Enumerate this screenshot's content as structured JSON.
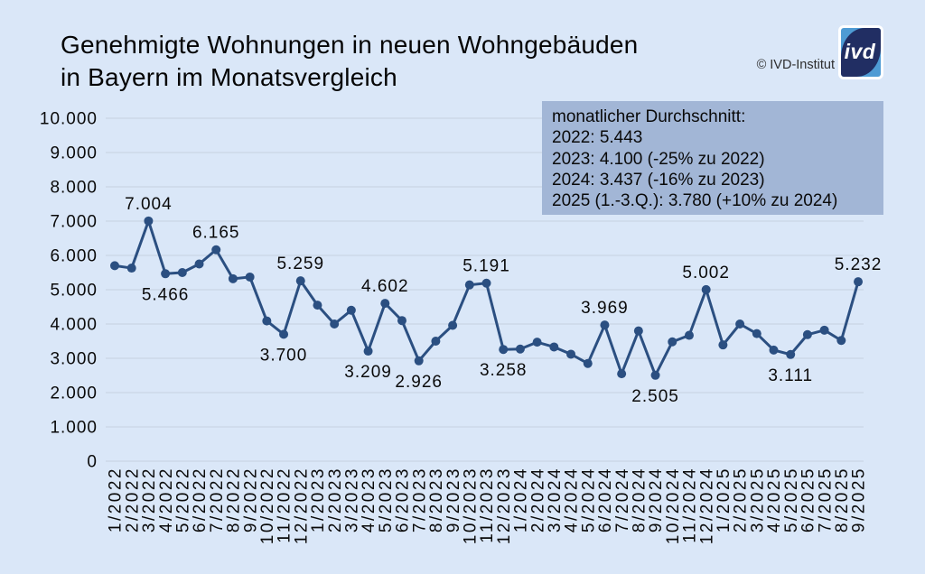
{
  "page": {
    "background": "#dae7f8"
  },
  "header": {
    "title_line1": "Genehmigte Wohnungen in neuen Wohngebäuden",
    "title_line2": "in Bayern im Monatsvergleich",
    "copyright": "© IVD-Institut",
    "logo_text": "ivd"
  },
  "legend": {
    "background": "#a2b6d6",
    "lines": [
      "monatlicher Durchschnitt:",
      "2022: 5.443",
      "2023: 4.100 (-25% zu 2022)",
      "2024: 3.437 (-16% zu 2023)",
      "2025 (1.-3.Q.): 3.780 (+10% zu 2024)"
    ]
  },
  "chart_data": {
    "type": "line",
    "title": "Genehmigte Wohnungen in neuen Wohngebäuden in Bayern im Monatsvergleich",
    "x": [
      "1/2022",
      "2/2022",
      "3/2022",
      "4/2022",
      "5/2022",
      "6/2022",
      "7/2022",
      "8/2022",
      "9/2022",
      "10/2022",
      "11/2022",
      "12/2022",
      "1/2023",
      "2/2023",
      "3/2023",
      "4/2023",
      "5/2023",
      "6/2023",
      "7/2023",
      "8/2023",
      "9/2023",
      "10/2023",
      "11/2023",
      "12/2023",
      "1/2024",
      "2/2024",
      "3/2024",
      "4/2024",
      "5/2024",
      "6/2024",
      "7/2024",
      "8/2024",
      "9/2024",
      "10/2024",
      "11/2024",
      "12/2024",
      "1/2025",
      "2/2025",
      "3/2025",
      "4/2025",
      "5/2025",
      "6/2025",
      "7/2025",
      "8/2025",
      "9/2025"
    ],
    "values": [
      5700,
      5630,
      7004,
      5466,
      5500,
      5750,
      6165,
      5320,
      5370,
      4090,
      3700,
      5259,
      4550,
      4000,
      4400,
      3209,
      4602,
      4100,
      2926,
      3500,
      3960,
      5140,
      5191,
      3258,
      3270,
      3470,
      3330,
      3120,
      2850,
      3969,
      2550,
      3800,
      2505,
      3480,
      3670,
      5002,
      3390,
      4000,
      3720,
      3240,
      3111,
      3690,
      3820,
      3520,
      5232
    ],
    "point_labels": [
      {
        "index": 2,
        "text": "7.004",
        "position": "above"
      },
      {
        "index": 3,
        "text": "5.466",
        "position": "below"
      },
      {
        "index": 6,
        "text": "6.165",
        "position": "above"
      },
      {
        "index": 10,
        "text": "3.700",
        "position": "below"
      },
      {
        "index": 11,
        "text": "5.259",
        "position": "above"
      },
      {
        "index": 15,
        "text": "3.209",
        "position": "below"
      },
      {
        "index": 16,
        "text": "4.602",
        "position": "above"
      },
      {
        "index": 18,
        "text": "2.926",
        "position": "below"
      },
      {
        "index": 22,
        "text": "5.191",
        "position": "above"
      },
      {
        "index": 23,
        "text": "3.258",
        "position": "below"
      },
      {
        "index": 29,
        "text": "3.969",
        "position": "above"
      },
      {
        "index": 32,
        "text": "2.505",
        "position": "below"
      },
      {
        "index": 35,
        "text": "5.002",
        "position": "above"
      },
      {
        "index": 40,
        "text": "3.111",
        "position": "below"
      },
      {
        "index": 44,
        "text": "5.232",
        "position": "above"
      }
    ],
    "ylim": [
      0,
      10000
    ],
    "ytick_step": 1000,
    "ytick_labels": [
      "0",
      "1.000",
      "2.000",
      "3.000",
      "4.000",
      "5.000",
      "6.000",
      "7.000",
      "8.000",
      "9.000",
      "10.000"
    ],
    "grid": true,
    "grid_color": "#c7d1e1",
    "line_color": "#2b4f81",
    "marker_color": "#2b4f81",
    "legend_position": "top-right"
  }
}
